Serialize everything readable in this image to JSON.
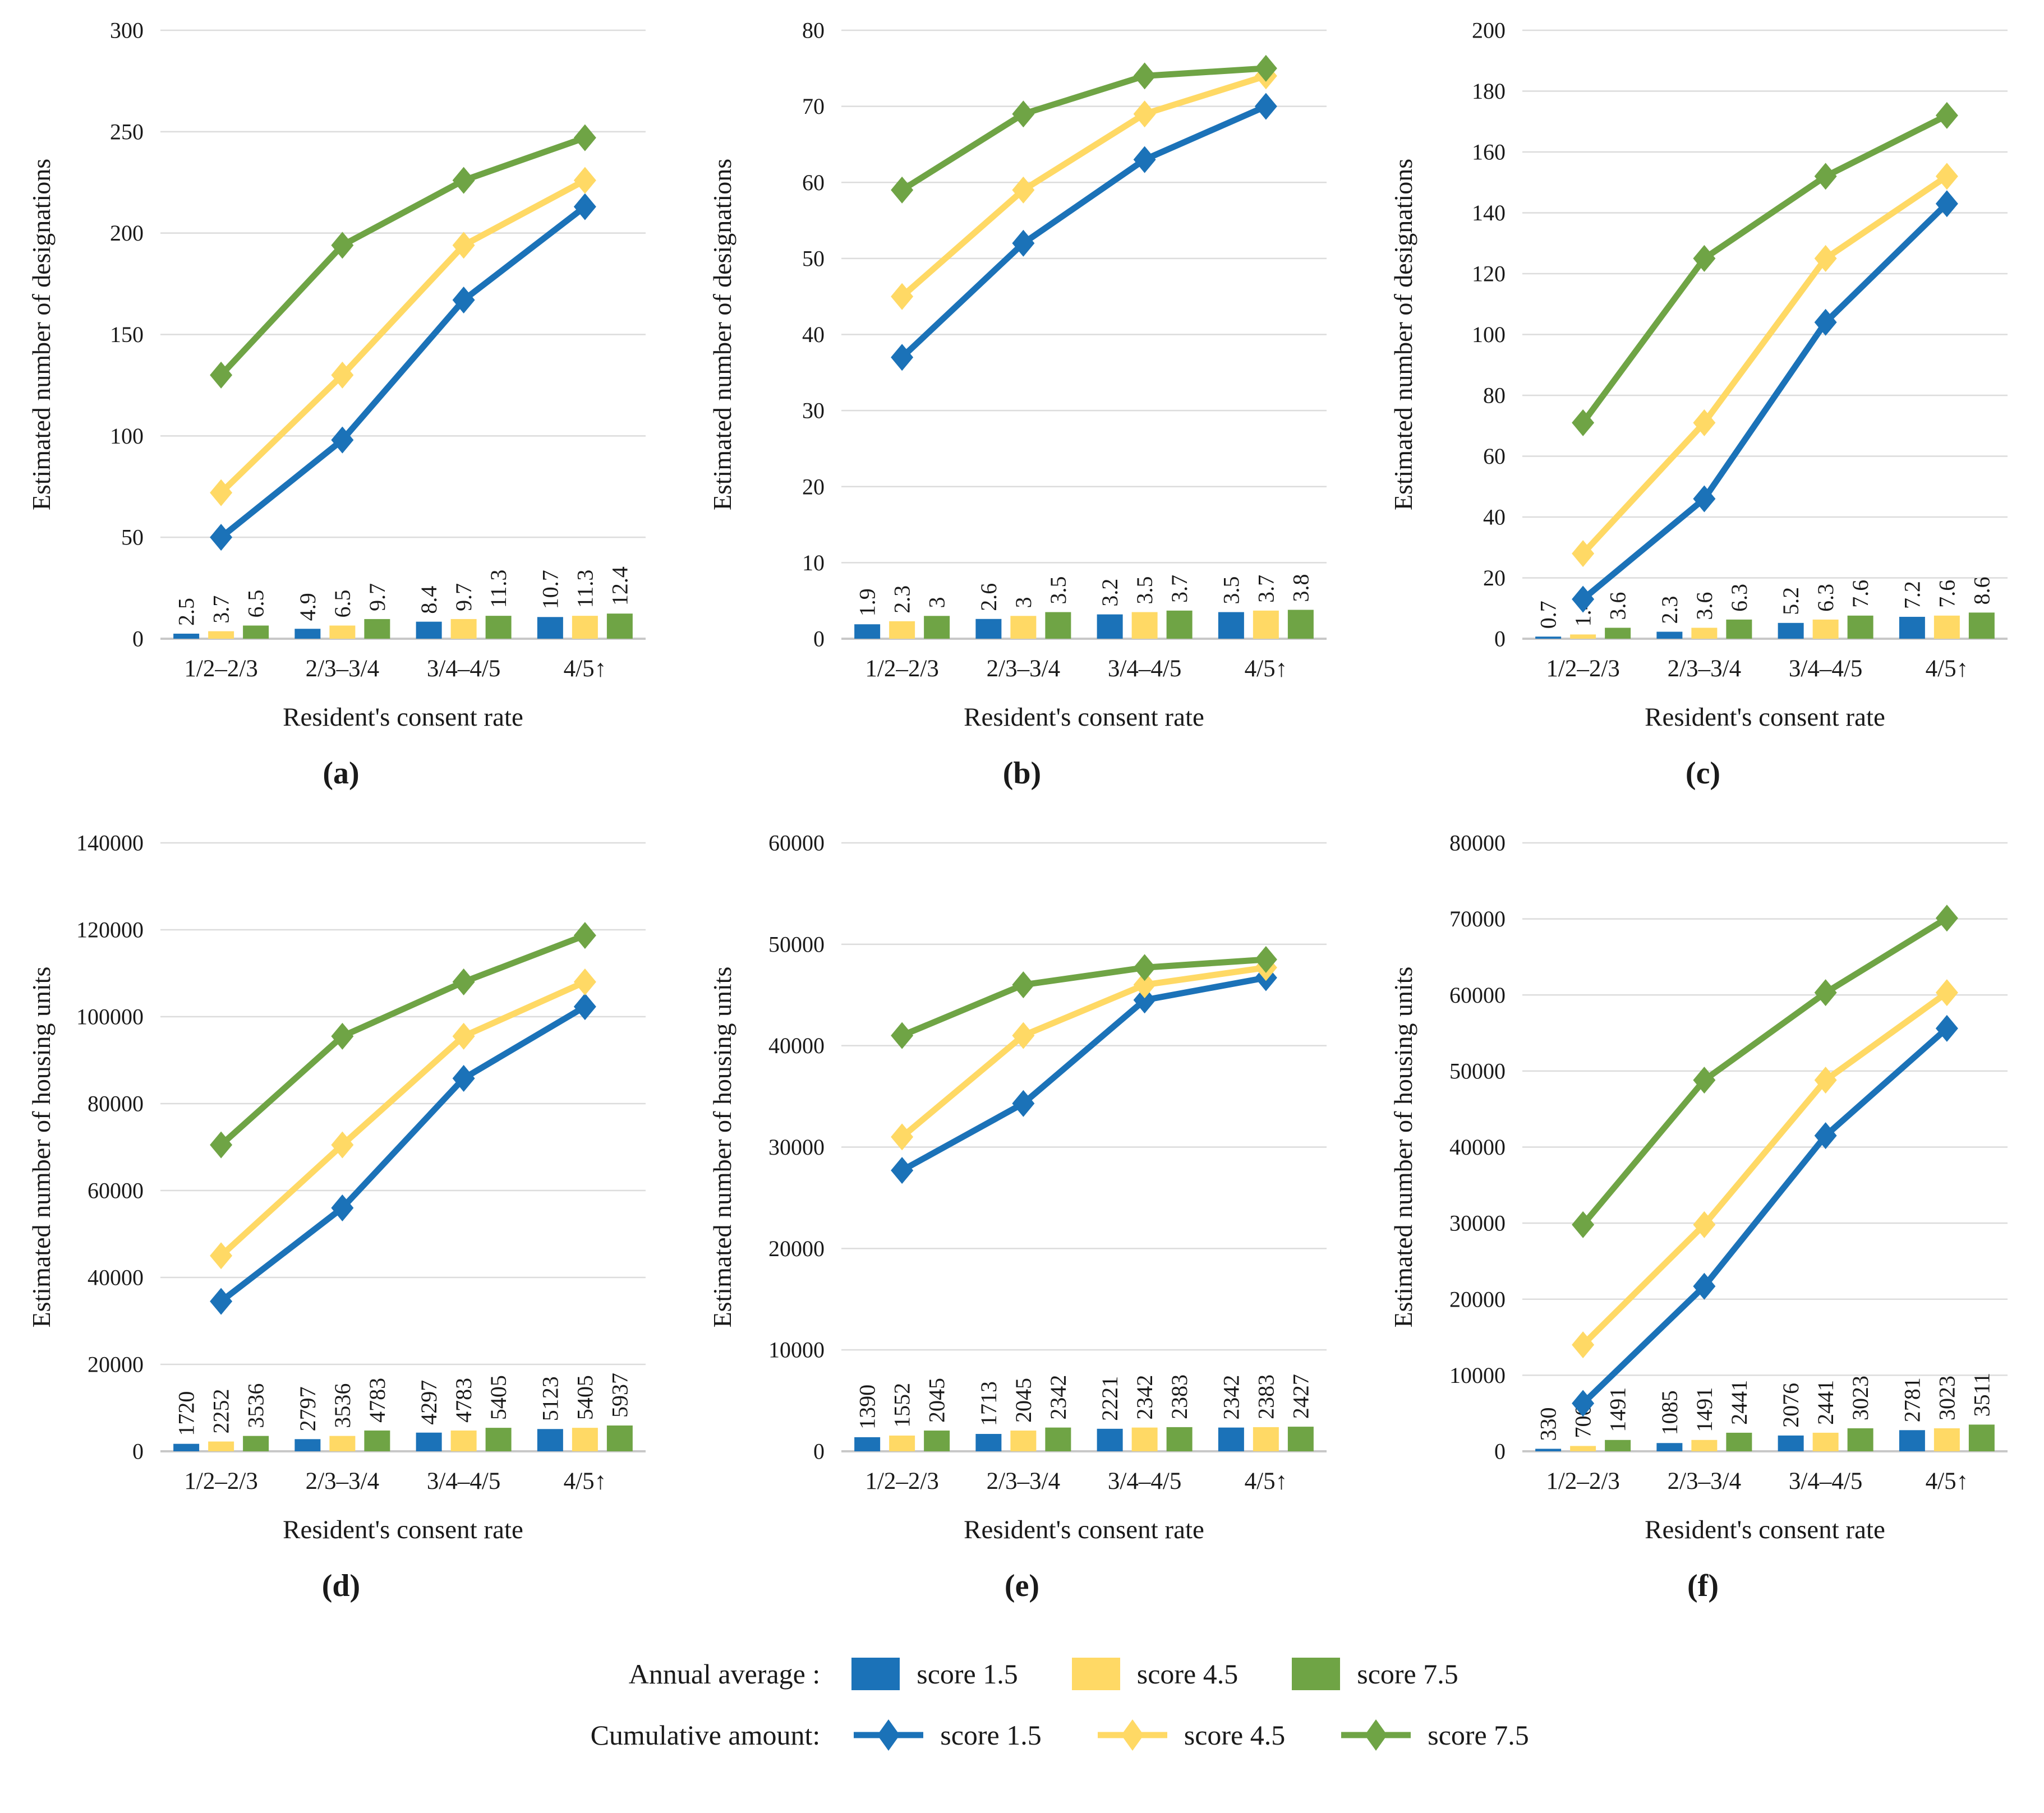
{
  "colors": {
    "blue": "#1b72b8",
    "yellow": "#ffd965",
    "green": "#6fa445",
    "grid": "#dcdcdc",
    "axis": "#c8c8c8",
    "text": "#1a1a1a"
  },
  "x_axis_label": "Resident's consent rate",
  "categories": [
    "1/2–2/3",
    "2/3–3/4",
    "3/4–4/5",
    "4/5↑"
  ],
  "legend": {
    "rows": [
      {
        "label": "Annual average :",
        "swatch": "bar",
        "items": [
          {
            "label": "score 1.5",
            "color": "blue"
          },
          {
            "label": "score 4.5",
            "color": "yellow"
          },
          {
            "label": "score 7.5",
            "color": "green"
          }
        ]
      },
      {
        "label": "Cumulative amount:",
        "swatch": "line",
        "items": [
          {
            "label": "score 1.5",
            "color": "blue"
          },
          {
            "label": "score 4.5",
            "color": "yellow"
          },
          {
            "label": "score 7.5",
            "color": "green"
          }
        ]
      }
    ]
  },
  "chart_data": [
    {
      "id": "a",
      "caption": "(a)",
      "type": "bar+line",
      "xlabel": "Resident's consent rate",
      "ylabel": "Estimated number of designations",
      "ylim": [
        0,
        300
      ],
      "ytick_step": 50,
      "categories": [
        "1/2–2/3",
        "2/3–3/4",
        "3/4–4/5",
        "4/5↑"
      ],
      "bar_series": [
        {
          "name": "Annual average score 1.5",
          "color": "blue",
          "values": [
            2.5,
            4.9,
            8.4,
            10.7
          ]
        },
        {
          "name": "Annual average score 4.5",
          "color": "yellow",
          "values": [
            3.7,
            6.5,
            9.7,
            11.3
          ]
        },
        {
          "name": "Annual average score 7.5",
          "color": "green",
          "values": [
            6.5,
            9.7,
            11.3,
            12.4
          ]
        }
      ],
      "line_series": [
        {
          "name": "Cumulative amount score 1.5",
          "color": "blue",
          "values": [
            50,
            98,
            167,
            213
          ]
        },
        {
          "name": "Cumulative amount score 4.5",
          "color": "yellow",
          "values": [
            72,
            130,
            194,
            226
          ]
        },
        {
          "name": "Cumulative amount score 7.5",
          "color": "green",
          "values": [
            130,
            194,
            226,
            247
          ]
        }
      ]
    },
    {
      "id": "b",
      "caption": "(b)",
      "type": "bar+line",
      "xlabel": "Resident's consent rate",
      "ylabel": "Estimated number of designations",
      "ylim": [
        0,
        80
      ],
      "ytick_step": 10,
      "categories": [
        "1/2–2/3",
        "2/3–3/4",
        "3/4–4/5",
        "4/5↑"
      ],
      "bar_series": [
        {
          "name": "Annual average score 1.5",
          "color": "blue",
          "values": [
            1.9,
            2.6,
            3.2,
            3.5
          ]
        },
        {
          "name": "Annual average score 4.5",
          "color": "yellow",
          "values": [
            2.3,
            3,
            3.5,
            3.7
          ]
        },
        {
          "name": "Annual average score 7.5",
          "color": "green",
          "values": [
            3,
            3.5,
            3.7,
            3.8
          ]
        }
      ],
      "line_series": [
        {
          "name": "Cumulative amount score 1.5",
          "color": "blue",
          "values": [
            37,
            52,
            63,
            70
          ]
        },
        {
          "name": "Cumulative amount score 4.5",
          "color": "yellow",
          "values": [
            45,
            59,
            69,
            74
          ]
        },
        {
          "name": "Cumulative amount score 7.5",
          "color": "green",
          "values": [
            59,
            69,
            74,
            75
          ]
        }
      ]
    },
    {
      "id": "c",
      "caption": "(c)",
      "type": "bar+line",
      "xlabel": "Resident's consent rate",
      "ylabel": "Estimated number of designations",
      "ylim": [
        0,
        200
      ],
      "ytick_step": 20,
      "categories": [
        "1/2–2/3",
        "2/3–3/4",
        "3/4–4/5",
        "4/5↑"
      ],
      "bar_series": [
        {
          "name": "Annual average score 1.5",
          "color": "blue",
          "values": [
            0.7,
            2.3,
            5.2,
            7.2
          ]
        },
        {
          "name": "Annual average score 4.5",
          "color": "yellow",
          "values": [
            1.4,
            3.6,
            6.3,
            7.6
          ]
        },
        {
          "name": "Annual average score 7.5",
          "color": "green",
          "values": [
            3.6,
            6.3,
            7.6,
            8.6
          ]
        }
      ],
      "line_series": [
        {
          "name": "Cumulative amount score 1.5",
          "color": "blue",
          "values": [
            13,
            46,
            104,
            143
          ]
        },
        {
          "name": "Cumulative amount score 4.5",
          "color": "yellow",
          "values": [
            28,
            71,
            125,
            152
          ]
        },
        {
          "name": "Cumulative amount score 7.5",
          "color": "green",
          "values": [
            71,
            125,
            152,
            172
          ]
        }
      ]
    },
    {
      "id": "d",
      "caption": "(d)",
      "type": "bar+line",
      "xlabel": "Resident's consent rate",
      "ylabel": "Estimated number of housing units",
      "ylim": [
        0,
        140000
      ],
      "ytick_step": 20000,
      "categories": [
        "1/2–2/3",
        "2/3–3/4",
        "3/4–4/5",
        "4/5↑"
      ],
      "bar_series": [
        {
          "name": "Annual average score 1.5",
          "color": "blue",
          "values": [
            1720,
            2797,
            4297,
            5123
          ]
        },
        {
          "name": "Annual average score 4.5",
          "color": "yellow",
          "values": [
            2252,
            3536,
            4783,
            5405
          ]
        },
        {
          "name": "Annual average score 7.5",
          "color": "green",
          "values": [
            3536,
            4783,
            5405,
            5937
          ]
        }
      ],
      "line_series": [
        {
          "name": "Cumulative amount score 1.5",
          "color": "blue",
          "values": [
            34500,
            56000,
            85800,
            102300
          ]
        },
        {
          "name": "Cumulative amount score 4.5",
          "color": "yellow",
          "values": [
            45000,
            70500,
            95500,
            108000
          ]
        },
        {
          "name": "Cumulative amount score 7.5",
          "color": "green",
          "values": [
            70500,
            95500,
            108000,
            118700
          ]
        }
      ]
    },
    {
      "id": "e",
      "caption": "(e)",
      "type": "bar+line",
      "xlabel": "Resident's consent rate",
      "ylabel": "Estimated number of housing units",
      "ylim": [
        0,
        60000
      ],
      "ytick_step": 10000,
      "categories": [
        "1/2–2/3",
        "2/3–3/4",
        "3/4–4/5",
        "4/5↑"
      ],
      "bar_series": [
        {
          "name": "Annual average score 1.5",
          "color": "blue",
          "values": [
            1390,
            1713,
            2221,
            2342
          ]
        },
        {
          "name": "Annual average score 4.5",
          "color": "yellow",
          "values": [
            1552,
            2045,
            2342,
            2383
          ]
        },
        {
          "name": "Annual average score 7.5",
          "color": "green",
          "values": [
            2045,
            2342,
            2383,
            2427
          ]
        }
      ],
      "line_series": [
        {
          "name": "Cumulative amount score 1.5",
          "color": "blue",
          "values": [
            27700,
            34300,
            44500,
            46700
          ]
        },
        {
          "name": "Cumulative amount score 4.5",
          "color": "yellow",
          "values": [
            31000,
            41000,
            46000,
            47700
          ]
        },
        {
          "name": "Cumulative amount score 7.5",
          "color": "green",
          "values": [
            41000,
            46000,
            47700,
            48500
          ]
        }
      ]
    },
    {
      "id": "f",
      "caption": "(f)",
      "type": "bar+line",
      "xlabel": "Resident's consent rate",
      "ylabel": "Estimated number of housing units",
      "ylim": [
        0,
        80000
      ],
      "ytick_step": 10000,
      "categories": [
        "1/2–2/3",
        "2/3–3/4",
        "3/4–4/5",
        "4/5↑"
      ],
      "bar_series": [
        {
          "name": "Annual average score 1.5",
          "color": "blue",
          "values": [
            330,
            1085,
            2076,
            2781
          ]
        },
        {
          "name": "Annual average score 4.5",
          "color": "yellow",
          "values": [
            700,
            1491,
            2441,
            3023
          ]
        },
        {
          "name": "Annual average score 7.5",
          "color": "green",
          "values": [
            1491,
            2441,
            3023,
            3511
          ]
        }
      ],
      "line_series": [
        {
          "name": "Cumulative amount score 1.5",
          "color": "blue",
          "values": [
            6300,
            21700,
            41500,
            55600
          ]
        },
        {
          "name": "Cumulative amount score 4.5",
          "color": "yellow",
          "values": [
            14000,
            29800,
            48800,
            60300
          ]
        },
        {
          "name": "Cumulative amount score 7.5",
          "color": "green",
          "values": [
            29800,
            48800,
            60300,
            70100
          ]
        }
      ]
    }
  ]
}
